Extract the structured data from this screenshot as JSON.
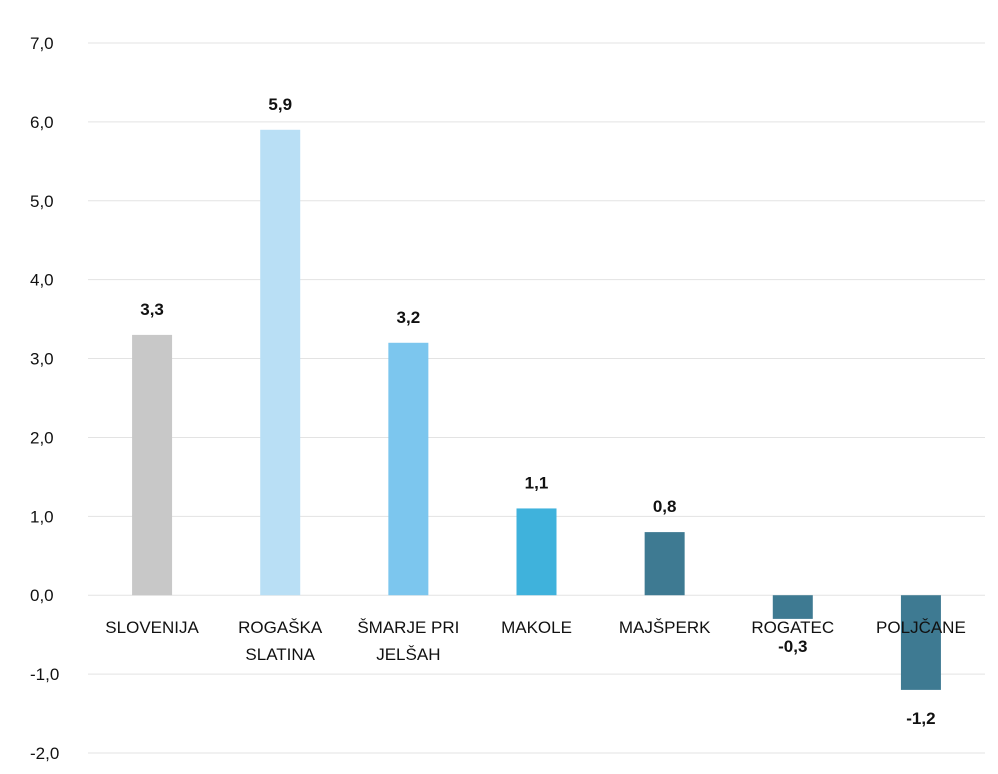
{
  "chart_data": {
    "type": "bar",
    "title": "",
    "xlabel": "",
    "ylabel": "",
    "categories": [
      [
        "SLOVENIJA"
      ],
      [
        "ROGAŠKA",
        "SLATINA"
      ],
      [
        "ŠMARJE PRI",
        "JELŠAH"
      ],
      [
        "MAKOLE"
      ],
      [
        "MAJŠPERK"
      ],
      [
        "ROGATEC"
      ],
      [
        "POLJČANE"
      ]
    ],
    "values": [
      3.3,
      5.9,
      3.2,
      1.1,
      0.8,
      -0.3,
      -1.2
    ],
    "value_labels": [
      "3,3",
      "5,9",
      "3,2",
      "1,1",
      "0,8",
      "-0,3",
      "-1,2"
    ],
    "colors": [
      "#c8c8c8",
      "#b9dff5",
      "#7cc6ee",
      "#3fb2dc",
      "#3e7a92",
      "#3e7a92",
      "#3e7a92"
    ],
    "ylim": [
      -2.0,
      7.0
    ],
    "yticks": [
      7.0,
      6.0,
      5.0,
      4.0,
      3.0,
      2.0,
      1.0,
      0.0,
      -1.0,
      -2.0
    ],
    "ytick_labels": [
      "7,0",
      "6,0",
      "5,0",
      "4,0",
      "3,0",
      "2,0",
      "1,0",
      "0,0",
      "-1,0",
      "-2,0"
    ],
    "grid": true,
    "legend": "none"
  }
}
